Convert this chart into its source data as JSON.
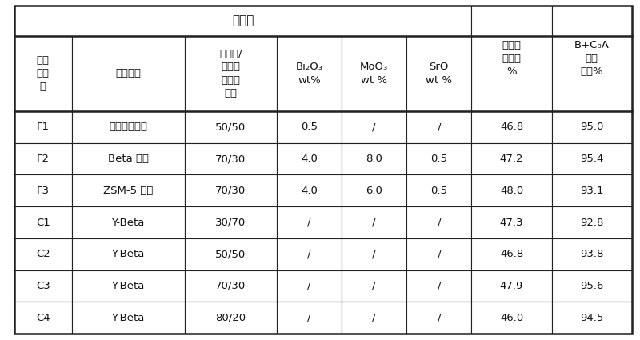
{
  "title": "催化剂",
  "header_col0": "催化\n剂编\n号",
  "header_col1": "沸石种类",
  "header_col2": "分子筛/\n氧化铝\n（重量\n比）",
  "header_col3": "Bi₂O₃\nwt%",
  "header_col4": "MoO₃\nwt %",
  "header_col5": "SrO\nwt %",
  "header_col6": "甲苯转\n化率，\n%",
  "header_col7": "B+C₈A\n选择\n性，%",
  "rows": [
    [
      "F1",
      "高硅丝光沸石",
      "50/50",
      "0.5",
      "/",
      "/",
      "46.8",
      "95.0"
    ],
    [
      "F2",
      "Beta 沸石",
      "70/30",
      "4.0",
      "8.0",
      "0.5",
      "47.2",
      "95.4"
    ],
    [
      "F3",
      "ZSM-5 沸石",
      "70/30",
      "4.0",
      "6.0",
      "0.5",
      "48.0",
      "93.1"
    ],
    [
      "C1",
      "Y-Beta",
      "30/70",
      "/",
      "/",
      "/",
      "47.3",
      "92.8"
    ],
    [
      "C2",
      "Y-Beta",
      "50/50",
      "/",
      "/",
      "/",
      "46.8",
      "93.8"
    ],
    [
      "C3",
      "Y-Beta",
      "70/30",
      "/",
      "/",
      "/",
      "47.9",
      "95.6"
    ],
    [
      "C4",
      "Y-Beta",
      "80/20",
      "/",
      "/",
      "/",
      "46.0",
      "94.5"
    ]
  ],
  "bg_color": "#ffffff",
  "line_color": "#222222",
  "text_color": "#111111",
  "font_size": 9.5,
  "header_font_size": 9.5,
  "title_font_size": 11
}
